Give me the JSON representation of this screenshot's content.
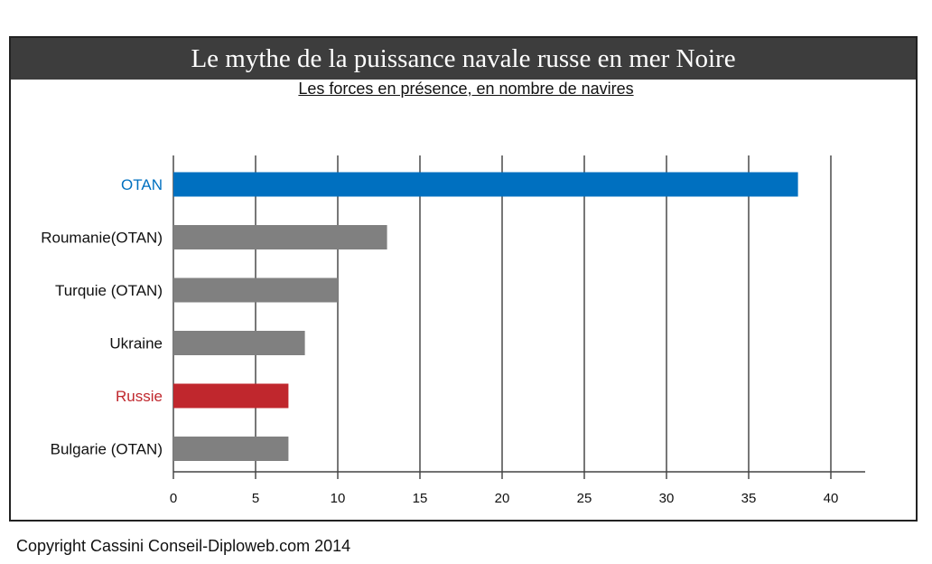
{
  "header": {
    "title": "Le mythe de la puissance navale russe en mer Noire",
    "subtitle": "Les forces en présence, en nombre de navires"
  },
  "footer": {
    "copyright": "Copyright Cassini Conseil-Diploweb.com 2014"
  },
  "chart_data": {
    "type": "bar",
    "orientation": "horizontal",
    "title": "Le mythe de la puissance navale russe en mer Noire",
    "subtitle": "Les forces en présence, en nombre de navires",
    "xlabel": "",
    "ylabel": "",
    "categories": [
      "OTAN",
      "Roumanie(OTAN)",
      "Turquie (OTAN)",
      "Ukraine",
      "Russie",
      "Bulgarie (OTAN)"
    ],
    "values": [
      38,
      13,
      10,
      8,
      7,
      7
    ],
    "colors": [
      "#0070c0",
      "#808080",
      "#808080",
      "#808080",
      "#c0272d",
      "#808080"
    ],
    "label_colors": [
      "#0070c0",
      "#111111",
      "#111111",
      "#111111",
      "#c0272d",
      "#111111"
    ],
    "xlim": [
      0,
      42
    ],
    "xticks": [
      0,
      5,
      10,
      15,
      20,
      25,
      30,
      35,
      40
    ],
    "grid": "vertical"
  }
}
